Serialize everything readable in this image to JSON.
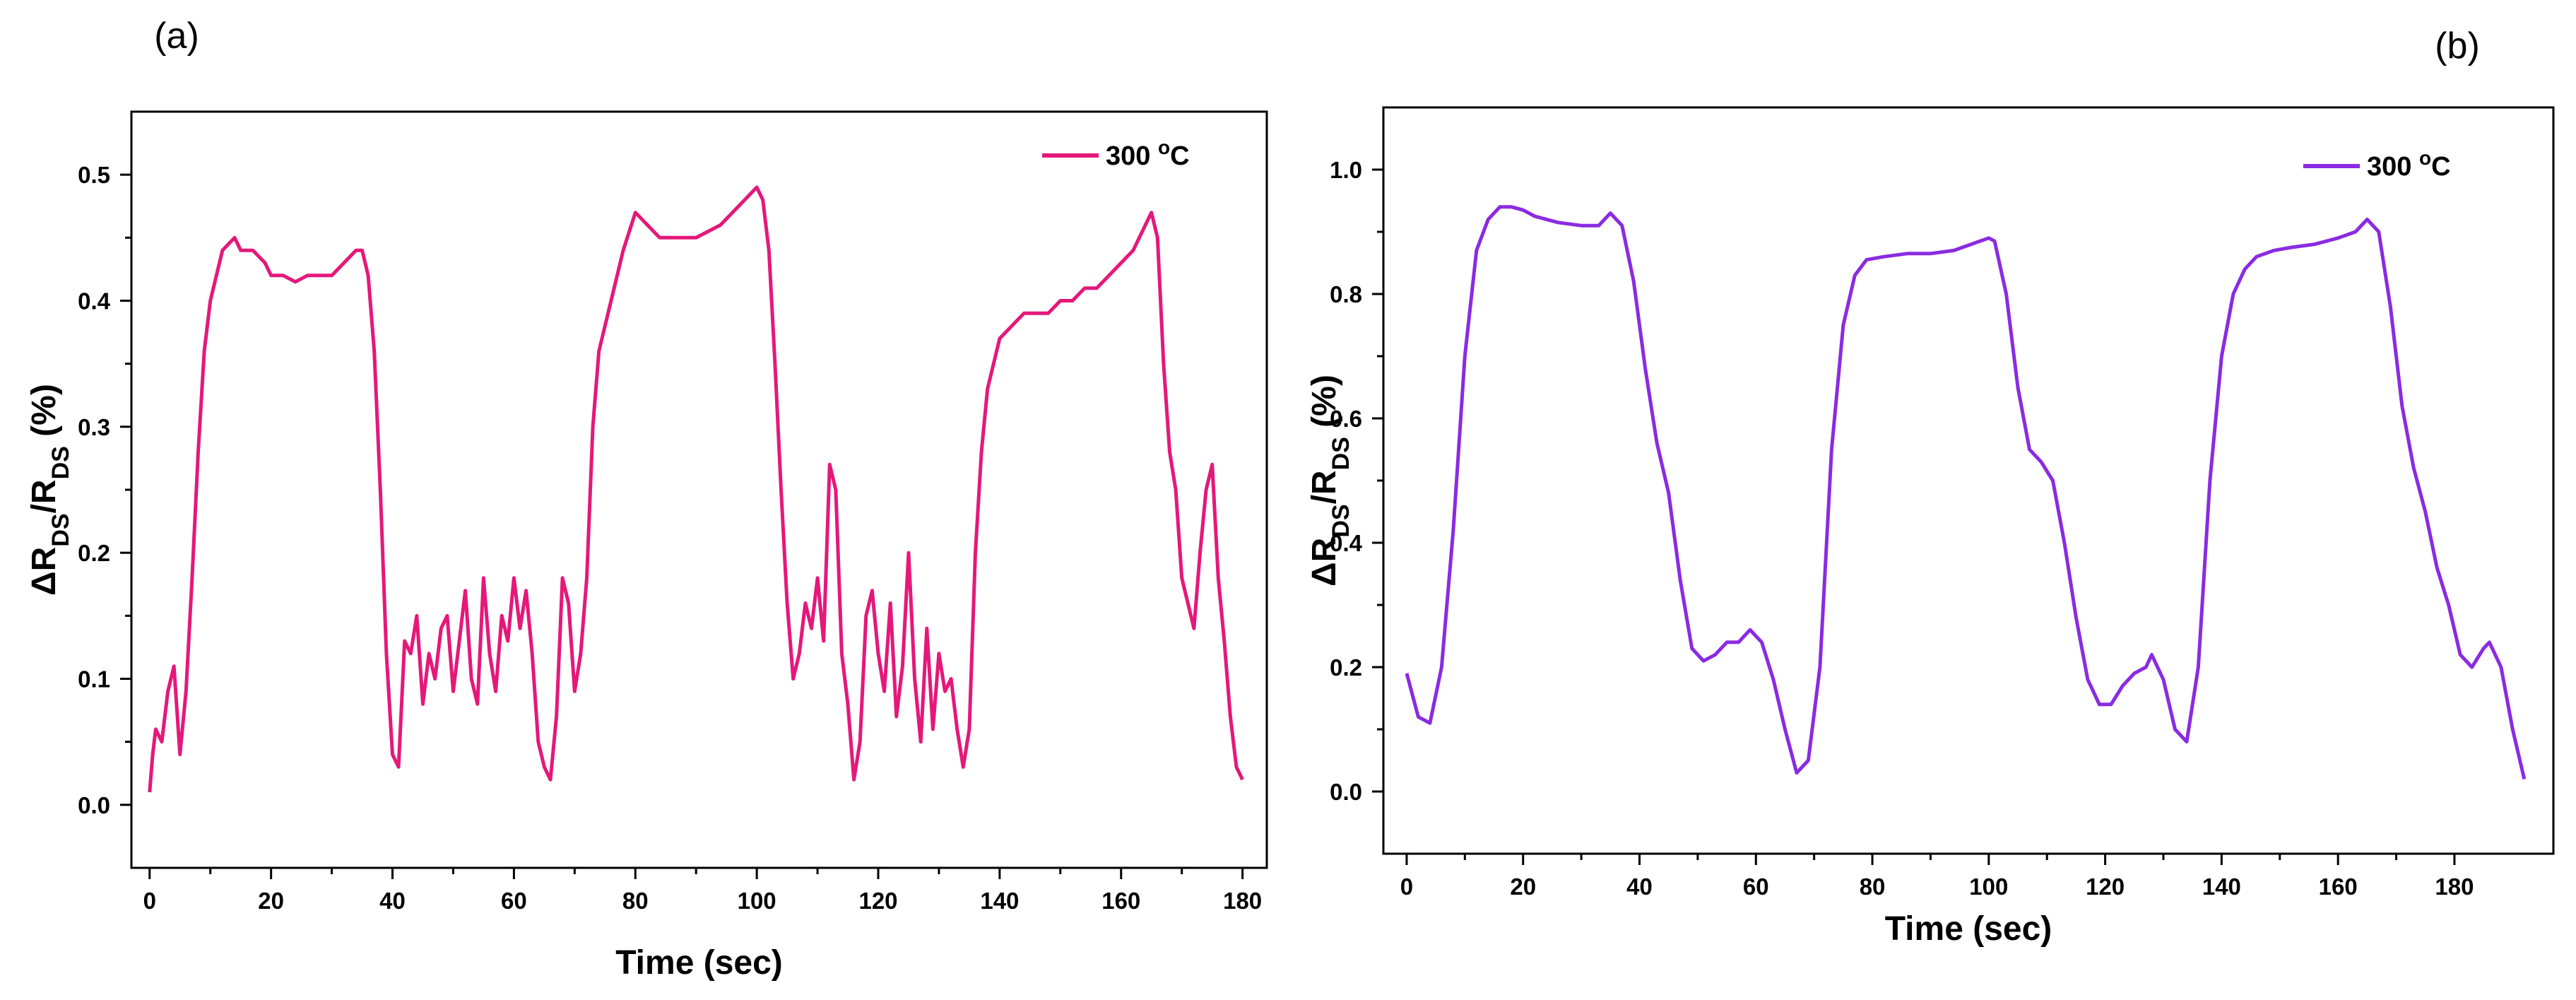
{
  "chart_data": [
    {
      "panel_label": "(a)",
      "type": "line",
      "xlabel": "Time (sec)",
      "ylabel": "ΔR_DS/R_DS (%)",
      "xlim": [
        -3,
        184
      ],
      "ylim": [
        -0.05,
        0.55
      ],
      "xticks": [
        0,
        20,
        40,
        60,
        80,
        100,
        120,
        140,
        160,
        180
      ],
      "xtick_labels": [
        "0",
        "20",
        "40",
        "60",
        "80",
        "100",
        "120",
        "140",
        "160",
        "180"
      ],
      "yticks": [
        0.0,
        0.1,
        0.2,
        0.3,
        0.4,
        0.5
      ],
      "ytick_labels": [
        "0.0",
        "0.1",
        "0.2",
        "0.3",
        "0.4",
        "0.5"
      ],
      "legend_position": "top-right",
      "grid": false,
      "series": [
        {
          "name": "300 oC",
          "color": "#e5187a",
          "points": [
            [
              0,
              0.01
            ],
            [
              0.5,
              0.04
            ],
            [
              1,
              0.06
            ],
            [
              2,
              0.05
            ],
            [
              3,
              0.09
            ],
            [
              4,
              0.11
            ],
            [
              5,
              0.04
            ],
            [
              6,
              0.09
            ],
            [
              7,
              0.18
            ],
            [
              8,
              0.28
            ],
            [
              9,
              0.36
            ],
            [
              10,
              0.4
            ],
            [
              11,
              0.42
            ],
            [
              12,
              0.44
            ],
            [
              14,
              0.45
            ],
            [
              15,
              0.44
            ],
            [
              17,
              0.44
            ],
            [
              19,
              0.43
            ],
            [
              20,
              0.42
            ],
            [
              22,
              0.42
            ],
            [
              24,
              0.415
            ],
            [
              26,
              0.42
            ],
            [
              28,
              0.42
            ],
            [
              30,
              0.42
            ],
            [
              32,
              0.43
            ],
            [
              34,
              0.44
            ],
            [
              35,
              0.44
            ],
            [
              36,
              0.42
            ],
            [
              37,
              0.36
            ],
            [
              38,
              0.25
            ],
            [
              39,
              0.12
            ],
            [
              40,
              0.04
            ],
            [
              41,
              0.03
            ],
            [
              42,
              0.13
            ],
            [
              43,
              0.12
            ],
            [
              44,
              0.15
            ],
            [
              45,
              0.08
            ],
            [
              46,
              0.12
            ],
            [
              47,
              0.1
            ],
            [
              48,
              0.14
            ],
            [
              49,
              0.15
            ],
            [
              50,
              0.09
            ],
            [
              51,
              0.13
            ],
            [
              52,
              0.17
            ],
            [
              53,
              0.1
            ],
            [
              54,
              0.08
            ],
            [
              55,
              0.18
            ],
            [
              56,
              0.12
            ],
            [
              57,
              0.09
            ],
            [
              58,
              0.15
            ],
            [
              59,
              0.13
            ],
            [
              60,
              0.18
            ],
            [
              61,
              0.14
            ],
            [
              62,
              0.17
            ],
            [
              63,
              0.12
            ],
            [
              64,
              0.05
            ],
            [
              65,
              0.03
            ],
            [
              66,
              0.02
            ],
            [
              67,
              0.07
            ],
            [
              68,
              0.18
            ],
            [
              69,
              0.16
            ],
            [
              70,
              0.09
            ],
            [
              71,
              0.12
            ],
            [
              72,
              0.18
            ],
            [
              73,
              0.3
            ],
            [
              74,
              0.36
            ],
            [
              76,
              0.4
            ],
            [
              78,
              0.44
            ],
            [
              80,
              0.47
            ],
            [
              82,
              0.46
            ],
            [
              84,
              0.45
            ],
            [
              86,
              0.45
            ],
            [
              88,
              0.45
            ],
            [
              90,
              0.45
            ],
            [
              92,
              0.455
            ],
            [
              94,
              0.46
            ],
            [
              96,
              0.47
            ],
            [
              98,
              0.48
            ],
            [
              100,
              0.49
            ],
            [
              101,
              0.48
            ],
            [
              102,
              0.44
            ],
            [
              103,
              0.35
            ],
            [
              104,
              0.25
            ],
            [
              105,
              0.16
            ],
            [
              106,
              0.1
            ],
            [
              107,
              0.12
            ],
            [
              108,
              0.16
            ],
            [
              109,
              0.14
            ],
            [
              110,
              0.18
            ],
            [
              111,
              0.13
            ],
            [
              112,
              0.27
            ],
            [
              113,
              0.25
            ],
            [
              114,
              0.12
            ],
            [
              115,
              0.08
            ],
            [
              116,
              0.02
            ],
            [
              117,
              0.05
            ],
            [
              118,
              0.15
            ],
            [
              119,
              0.17
            ],
            [
              120,
              0.12
            ],
            [
              121,
              0.09
            ],
            [
              122,
              0.16
            ],
            [
              123,
              0.07
            ],
            [
              124,
              0.11
            ],
            [
              125,
              0.2
            ],
            [
              126,
              0.1
            ],
            [
              127,
              0.05
            ],
            [
              128,
              0.14
            ],
            [
              129,
              0.06
            ],
            [
              130,
              0.12
            ],
            [
              131,
              0.09
            ],
            [
              132,
              0.1
            ],
            [
              133,
              0.06
            ],
            [
              134,
              0.03
            ],
            [
              135,
              0.06
            ],
            [
              136,
              0.2
            ],
            [
              137,
              0.28
            ],
            [
              138,
              0.33
            ],
            [
              140,
              0.37
            ],
            [
              142,
              0.38
            ],
            [
              144,
              0.39
            ],
            [
              146,
              0.39
            ],
            [
              148,
              0.39
            ],
            [
              150,
              0.4
            ],
            [
              152,
              0.4
            ],
            [
              154,
              0.41
            ],
            [
              156,
              0.41
            ],
            [
              158,
              0.42
            ],
            [
              160,
              0.43
            ],
            [
              162,
              0.44
            ],
            [
              164,
              0.46
            ],
            [
              165,
              0.47
            ],
            [
              166,
              0.45
            ],
            [
              167,
              0.35
            ],
            [
              168,
              0.28
            ],
            [
              169,
              0.25
            ],
            [
              170,
              0.18
            ],
            [
              171,
              0.16
            ],
            [
              172,
              0.14
            ],
            [
              173,
              0.2
            ],
            [
              174,
              0.25
            ],
            [
              175,
              0.27
            ],
            [
              176,
              0.18
            ],
            [
              177,
              0.13
            ],
            [
              178,
              0.07
            ],
            [
              179,
              0.03
            ],
            [
              180,
              0.02
            ]
          ]
        }
      ]
    },
    {
      "panel_label": "(b)",
      "type": "line",
      "xlabel": "Time (sec)",
      "ylabel": "ΔR_DS/R_DS (%)",
      "xlim": [
        -4,
        197
      ],
      "ylim": [
        -0.1,
        1.1
      ],
      "xticks": [
        0,
        20,
        40,
        60,
        80,
        100,
        120,
        140,
        160,
        180
      ],
      "xtick_labels": [
        "0",
        "20",
        "40",
        "60",
        "80",
        "100",
        "120",
        "140",
        "160",
        "180"
      ],
      "yticks": [
        0.0,
        0.2,
        0.4,
        0.6,
        0.8,
        1.0
      ],
      "ytick_labels": [
        "0.0",
        "0.2",
        "0.4",
        "0.6",
        "0.8",
        "1.0"
      ],
      "legend_position": "top-right",
      "grid": false,
      "series": [
        {
          "name": "300 oC",
          "color": "#8a2be2",
          "points": [
            [
              0,
              0.19
            ],
            [
              2,
              0.12
            ],
            [
              4,
              0.11
            ],
            [
              6,
              0.2
            ],
            [
              8,
              0.42
            ],
            [
              10,
              0.7
            ],
            [
              12,
              0.87
            ],
            [
              14,
              0.92
            ],
            [
              16,
              0.94
            ],
            [
              18,
              0.94
            ],
            [
              20,
              0.935
            ],
            [
              22,
              0.925
            ],
            [
              26,
              0.915
            ],
            [
              30,
              0.91
            ],
            [
              33,
              0.91
            ],
            [
              35,
              0.93
            ],
            [
              37,
              0.91
            ],
            [
              39,
              0.82
            ],
            [
              41,
              0.68
            ],
            [
              43,
              0.56
            ],
            [
              45,
              0.48
            ],
            [
              47,
              0.34
            ],
            [
              49,
              0.23
            ],
            [
              51,
              0.21
            ],
            [
              53,
              0.22
            ],
            [
              55,
              0.24
            ],
            [
              57,
              0.24
            ],
            [
              59,
              0.26
            ],
            [
              61,
              0.24
            ],
            [
              63,
              0.18
            ],
            [
              65,
              0.1
            ],
            [
              67,
              0.03
            ],
            [
              69,
              0.05
            ],
            [
              71,
              0.2
            ],
            [
              73,
              0.55
            ],
            [
              75,
              0.75
            ],
            [
              77,
              0.83
            ],
            [
              79,
              0.855
            ],
            [
              82,
              0.86
            ],
            [
              86,
              0.865
            ],
            [
              90,
              0.865
            ],
            [
              94,
              0.87
            ],
            [
              97,
              0.88
            ],
            [
              100,
              0.89
            ],
            [
              101,
              0.885
            ],
            [
              103,
              0.8
            ],
            [
              105,
              0.65
            ],
            [
              107,
              0.55
            ],
            [
              109,
              0.53
            ],
            [
              111,
              0.5
            ],
            [
              113,
              0.4
            ],
            [
              115,
              0.28
            ],
            [
              117,
              0.18
            ],
            [
              119,
              0.14
            ],
            [
              121,
              0.14
            ],
            [
              123,
              0.17
            ],
            [
              125,
              0.19
            ],
            [
              127,
              0.2
            ],
            [
              128,
              0.22
            ],
            [
              130,
              0.18
            ],
            [
              132,
              0.1
            ],
            [
              134,
              0.08
            ],
            [
              136,
              0.2
            ],
            [
              138,
              0.5
            ],
            [
              140,
              0.7
            ],
            [
              142,
              0.8
            ],
            [
              144,
              0.84
            ],
            [
              146,
              0.86
            ],
            [
              149,
              0.87
            ],
            [
              152,
              0.875
            ],
            [
              156,
              0.88
            ],
            [
              160,
              0.89
            ],
            [
              163,
              0.9
            ],
            [
              165,
              0.92
            ],
            [
              167,
              0.9
            ],
            [
              169,
              0.78
            ],
            [
              171,
              0.62
            ],
            [
              173,
              0.52
            ],
            [
              175,
              0.45
            ],
            [
              177,
              0.36
            ],
            [
              179,
              0.3
            ],
            [
              181,
              0.22
            ],
            [
              183,
              0.2
            ],
            [
              185,
              0.23
            ],
            [
              186,
              0.24
            ],
            [
              188,
              0.2
            ],
            [
              190,
              0.1
            ],
            [
              192,
              0.02
            ]
          ]
        }
      ]
    }
  ]
}
